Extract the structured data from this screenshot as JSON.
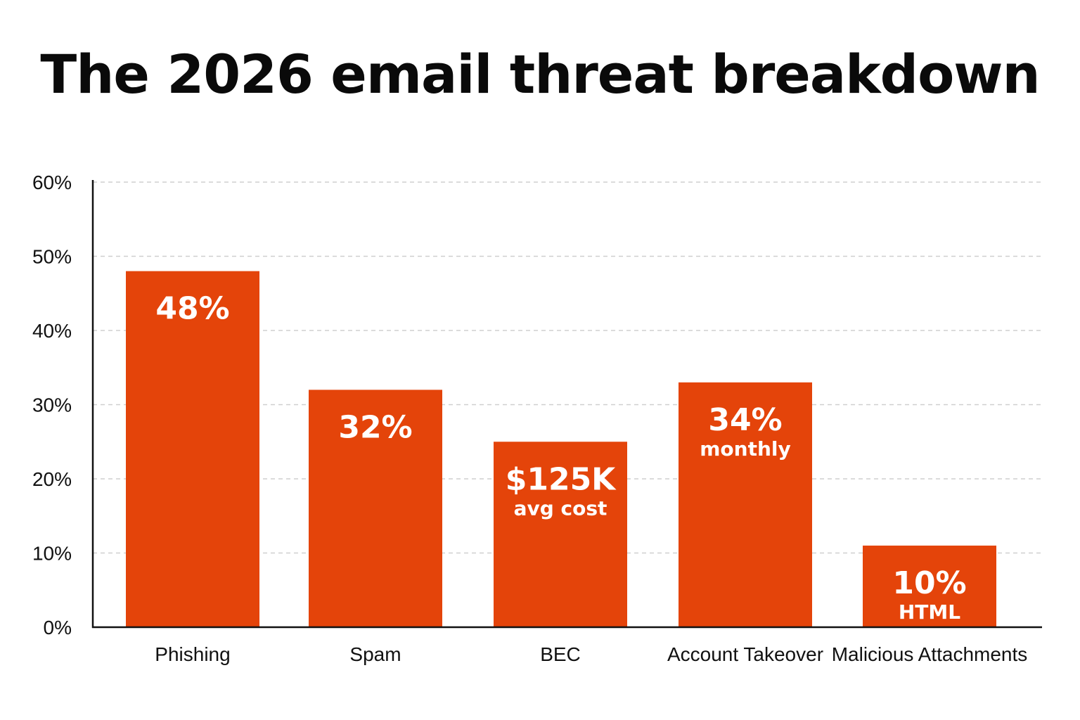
{
  "chart_data": {
    "type": "bar",
    "title": "The 2026 email threat breakdown",
    "categories": [
      "Phishing",
      "Spam",
      "BEC",
      "Account Takeover",
      "Malicious Attachments"
    ],
    "values": [
      48,
      32,
      25,
      33,
      11
    ],
    "data_labels": [
      {
        "main": "48%",
        "sub": ""
      },
      {
        "main": "32%",
        "sub": ""
      },
      {
        "main": "$125K",
        "sub": "avg cost"
      },
      {
        "main": "34%",
        "sub": "monthly"
      },
      {
        "main": "10%",
        "sub": "HTML"
      }
    ],
    "ylim": [
      0,
      60
    ],
    "yticks": [
      "0%",
      "10%",
      "20%",
      "30%",
      "40%",
      "50%",
      "60%"
    ],
    "grid": true,
    "legend": "none",
    "bar_color": "#e4440a"
  }
}
